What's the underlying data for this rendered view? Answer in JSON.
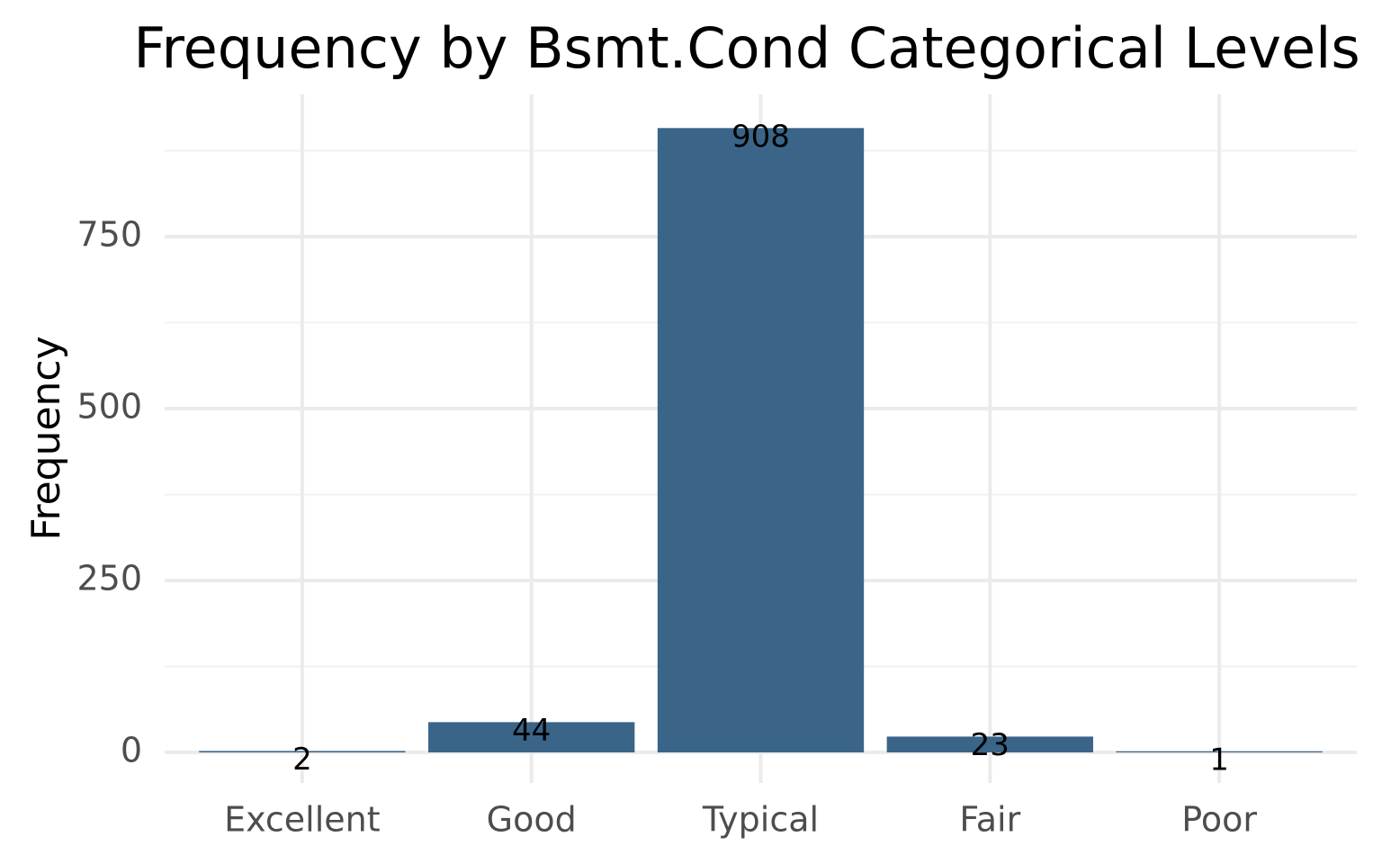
{
  "chart_data": {
    "type": "bar",
    "title": "Frequency by Bsmt.Cond Categorical Levels",
    "xlabel": "",
    "ylabel": "Frequency",
    "categories": [
      "Excellent",
      "Good",
      "Typical",
      "Fair",
      "Poor"
    ],
    "values": [
      2,
      44,
      908,
      23,
      1
    ],
    "data_labels": [
      "2",
      "44",
      "908",
      "23",
      "1"
    ],
    "ylim": [
      0,
      960
    ],
    "yticks": [
      0,
      250,
      500,
      750
    ],
    "ytick_labels": [
      "0",
      "250",
      "500",
      "750"
    ],
    "minor_yticks": [
      125,
      375,
      625,
      875
    ],
    "grid": true,
    "legend": "none",
    "bar_color": "#3a6589"
  }
}
